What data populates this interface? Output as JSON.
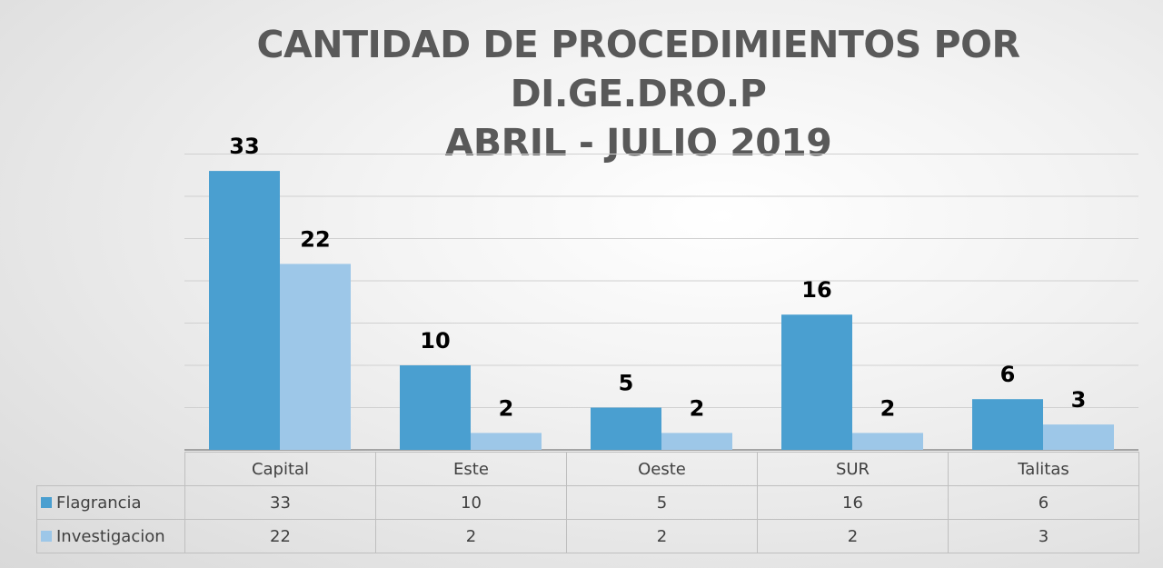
{
  "chart_data": {
    "type": "bar",
    "title": [
      "CANTIDAD DE PROCEDIMIENTOS POR DI.GE.DRO.P",
      "ABRIL - JULIO 2019"
    ],
    "categories": [
      "Capital",
      "Este",
      "Oeste",
      "SUR",
      "Talitas"
    ],
    "series": [
      {
        "name": "Flagrancia",
        "values": [
          33,
          10,
          5,
          16,
          6
        ],
        "color": "#4a9fd0"
      },
      {
        "name": "Investigacion",
        "values": [
          22,
          2,
          2,
          2,
          3
        ],
        "color": "#9dc7e8"
      }
    ],
    "ylim": [
      0,
      35
    ],
    "grid": true,
    "data_labels": true,
    "data_table": true
  }
}
